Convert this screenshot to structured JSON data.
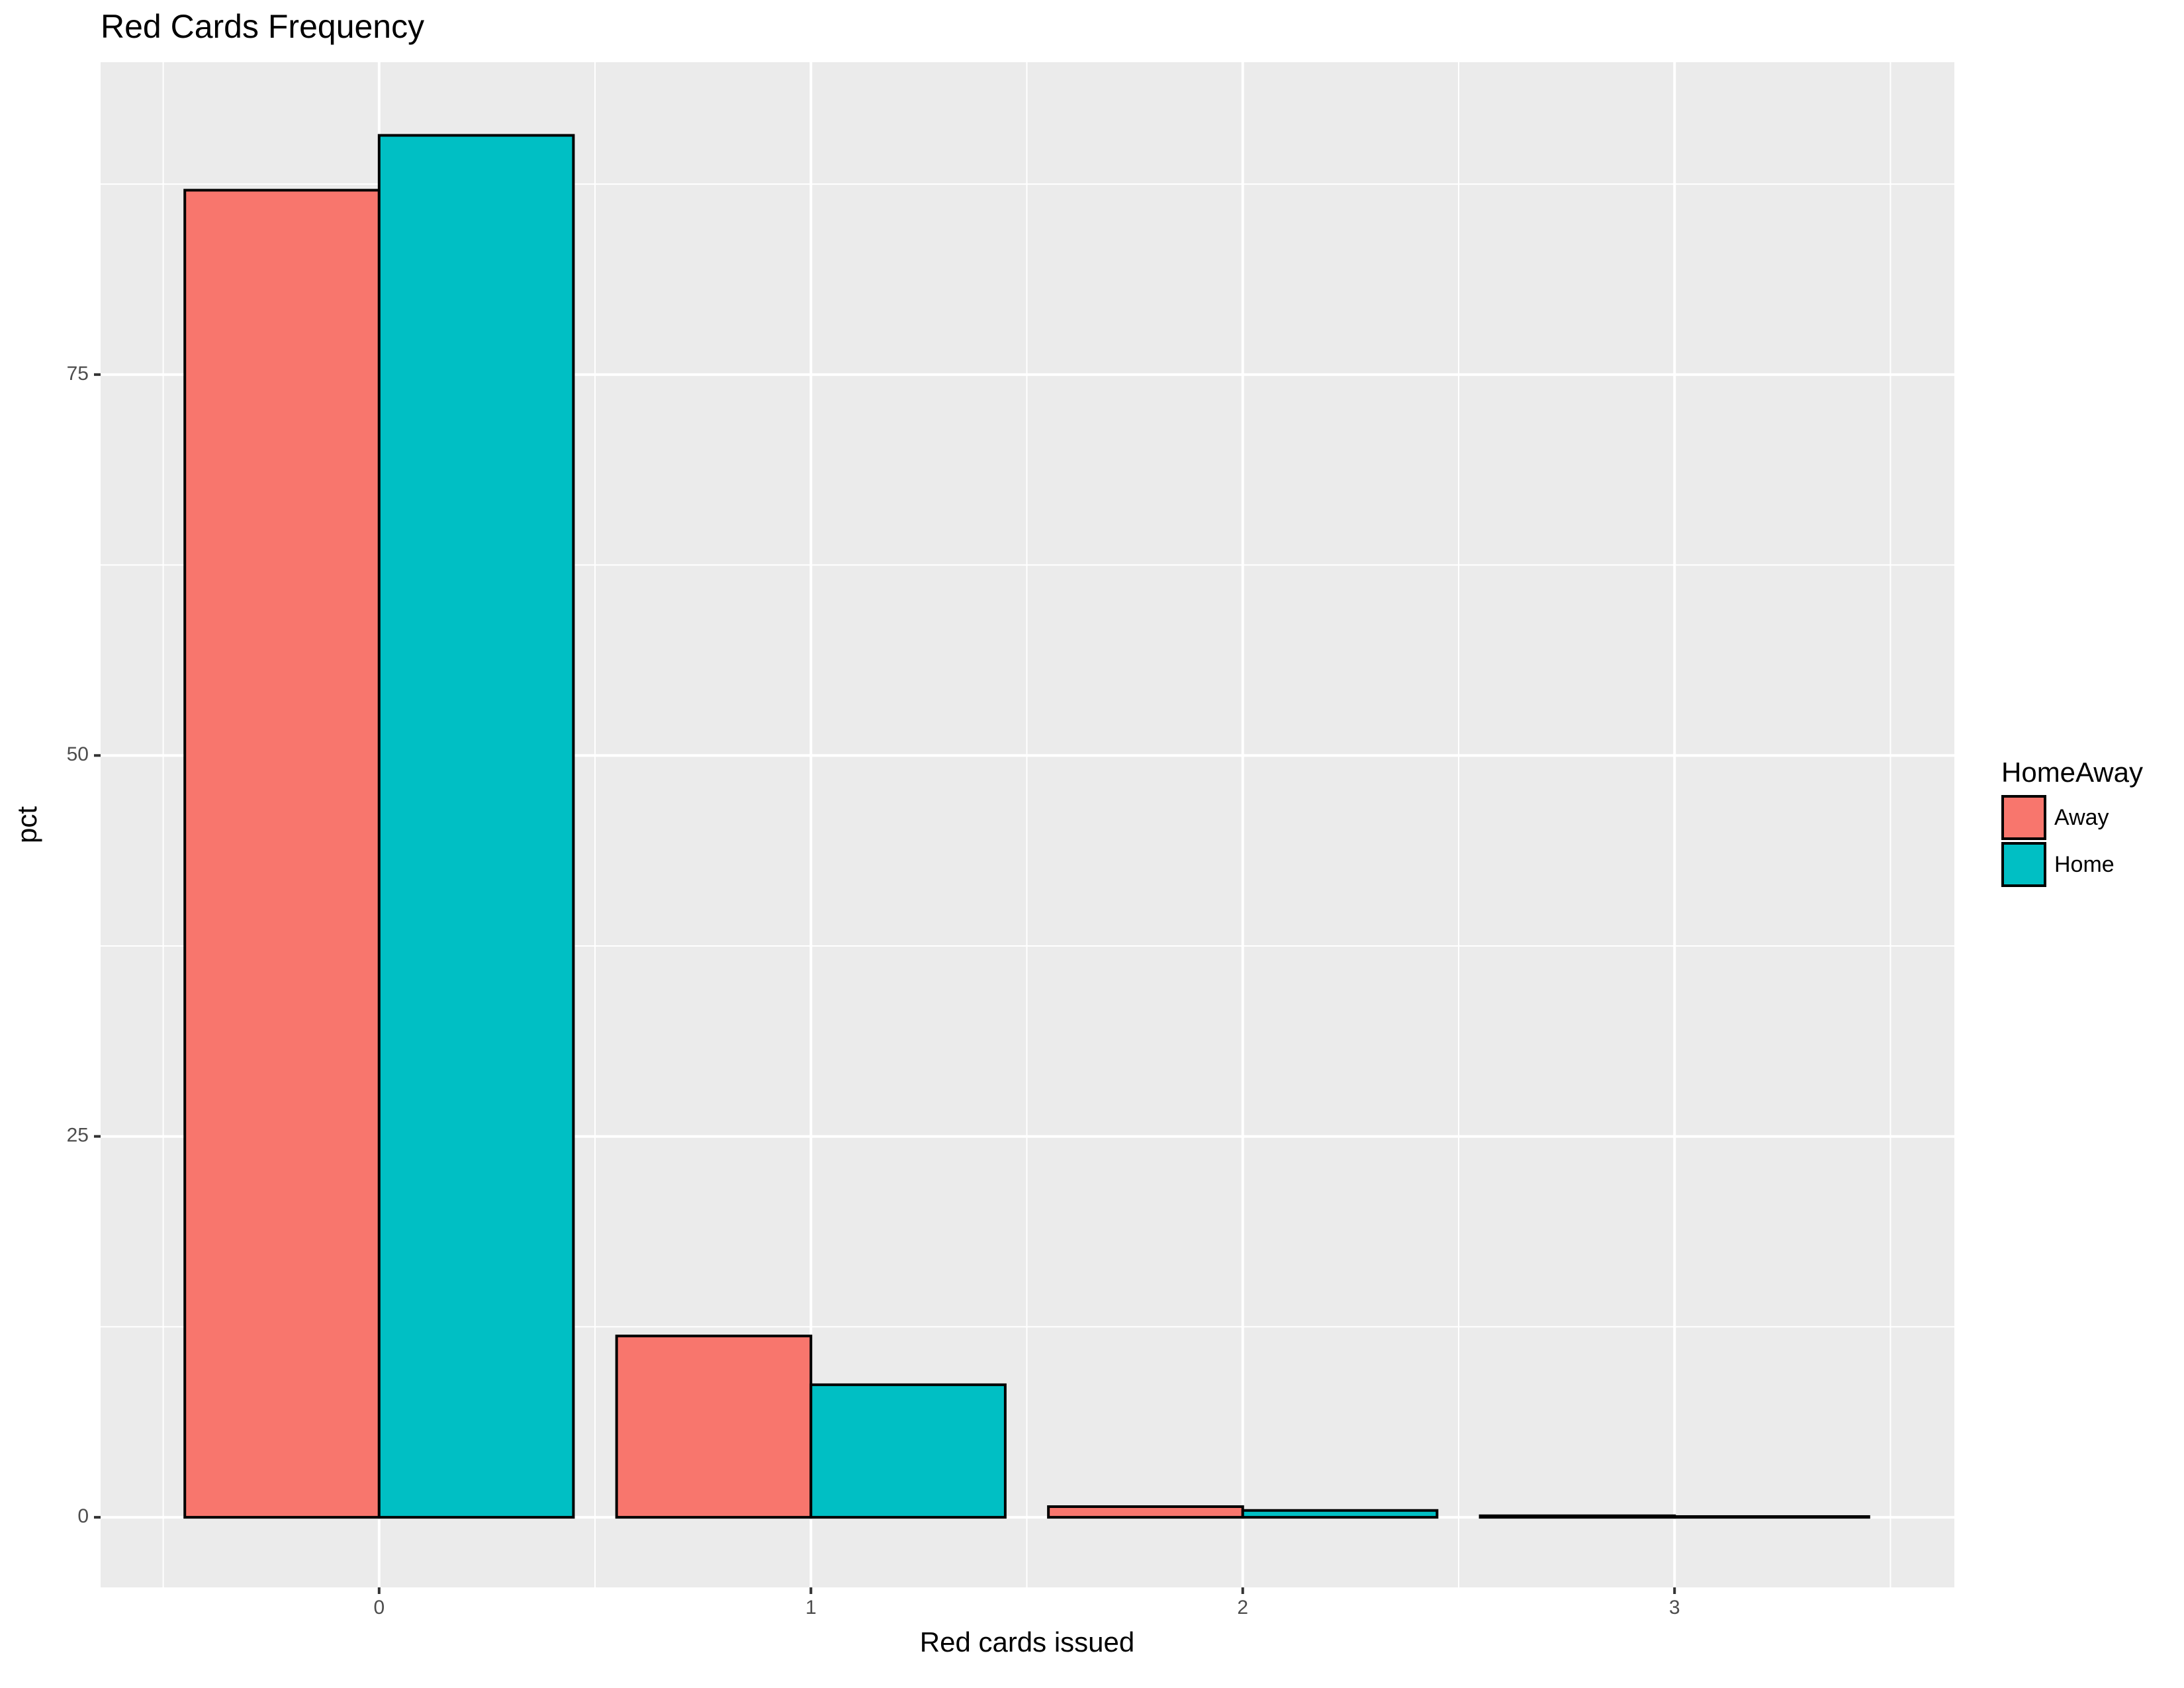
{
  "chart_data": {
    "type": "bar",
    "title": "Red Cards Frequency",
    "x_label": "Red cards issued",
    "y_label": "pct",
    "x": [
      0,
      1,
      2,
      3
    ],
    "xlim": [
      -0.645,
      3.648
    ],
    "xticks": [
      0,
      1,
      2,
      3
    ],
    "ylim": [
      -4.6,
      95.5
    ],
    "yticks": [
      0,
      25,
      50,
      75
    ],
    "grid": true,
    "legend_title": "HomeAway",
    "legend_position": "right",
    "series": [
      {
        "name": "Away",
        "color": "#f8766d",
        "values": [
          87.1,
          11.9,
          0.7,
          0.1
        ]
      },
      {
        "name": "Home",
        "color": "#00bfc4",
        "values": [
          90.7,
          8.7,
          0.45,
          0.05
        ]
      }
    ]
  }
}
